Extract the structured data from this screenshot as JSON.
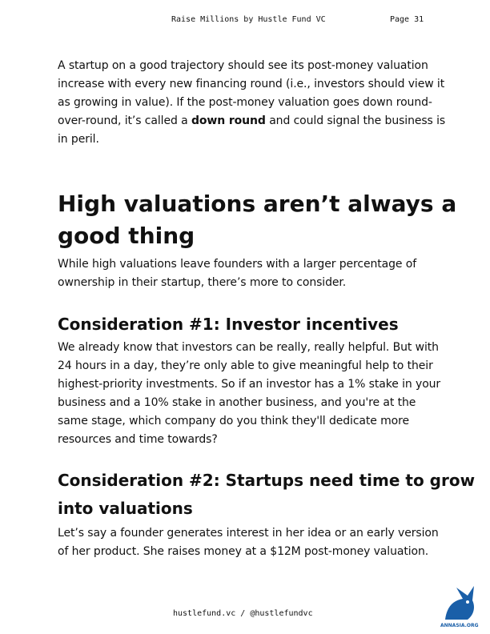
{
  "header": {
    "title": "Raise Millions by Hustle Fund VC",
    "page": "Page 31"
  },
  "blocks": [
    {
      "kind": "p",
      "lines": [
        "A startup on a good trajectory should see its post-money valuation",
        "increase with every new financing round (i.e., investors should view it",
        "as growing in value). If the post-money valuation goes down round-",
        {
          "text": "over-round, it’s called a ",
          "bold": "down round",
          "after": " and could signal the business is"
        },
        "in peril."
      ]
    },
    {
      "kind": "h1",
      "lines": [
        "High valuations aren’t always a",
        "good thing"
      ]
    },
    {
      "kind": "p",
      "lines": [
        "While high valuations leave founders with a larger percentage of",
        "ownership in their startup, there’s more to consider."
      ]
    },
    {
      "kind": "h2",
      "lines": [
        "Consideration #1: Investor incentives"
      ]
    },
    {
      "kind": "p",
      "lines": [
        "We already know that investors can be really, really helpful. But with",
        "24 hours in a day, they’re only able to give meaningful help to their",
        "highest-priority investments.  So if an investor has a 1% stake in your",
        "business and a 10% stake in another business, and you're at the",
        "same stage, which company do you think they'll dedicate more",
        "resources and time towards?"
      ]
    },
    {
      "kind": "h2",
      "lines": [
        "Consideration #2: Startups need time to grow",
        "into valuations"
      ]
    },
    {
      "kind": "p",
      "lines": [
        "Let’s say a founder generates interest in her idea or an early version",
        "of her product. She raises money at a $12M post-money valuation."
      ]
    }
  ],
  "footer": "hustlefund.vc / @hustlefundvc",
  "logo_text": "ANNASIA.ORG"
}
